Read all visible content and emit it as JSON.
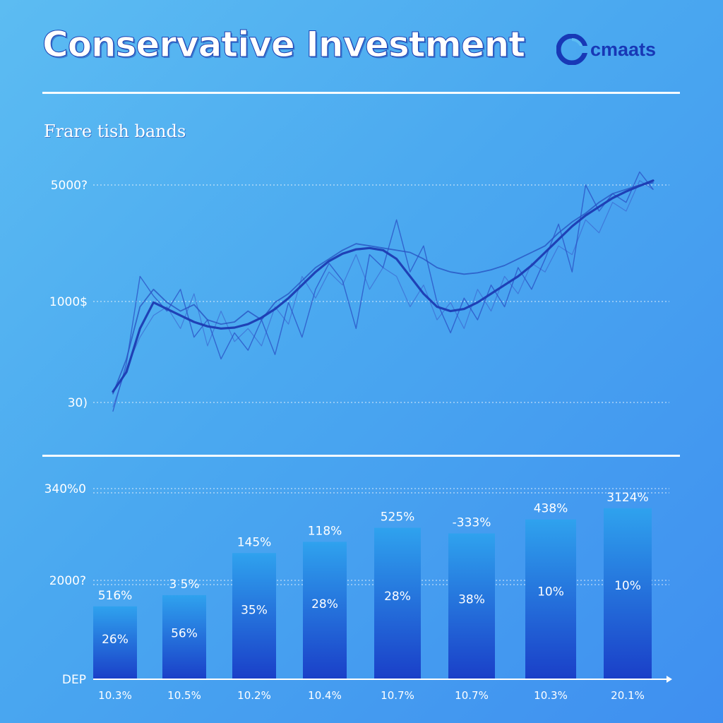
{
  "header": {
    "title": "Conservative Investment",
    "brand": "cmaats",
    "subtitle": "Frare tish bands"
  },
  "colors": {
    "background_start": "#5cbcf2",
    "background_end": "#3f8ff0",
    "line": "#1f3fb8",
    "bar_top": "#2fa2ee",
    "bar_bottom": "#1a3fc8",
    "text": "#ffffff"
  },
  "chart_data": [
    {
      "type": "line",
      "title": "",
      "y_ticks": [
        "5000?",
        "1000$",
        "30)"
      ],
      "x": [
        0,
        1,
        2,
        3,
        4,
        5,
        6,
        7,
        8,
        9,
        10,
        11,
        12,
        13,
        14,
        15,
        16,
        17,
        18,
        19,
        20,
        21,
        22,
        23,
        24,
        25,
        26,
        27,
        28,
        29,
        30,
        31,
        32,
        33,
        34,
        35,
        36,
        37,
        38,
        39,
        40
      ],
      "series": [
        {
          "values": [
            250,
            700,
            1700,
            2300,
            2150,
            2000,
            1850,
            1750,
            1700,
            1720,
            1800,
            1950,
            2150,
            2400,
            2700,
            3000,
            3250,
            3420,
            3520,
            3550,
            3500,
            3300,
            2900,
            2500,
            2200,
            2100,
            2150,
            2300,
            2500,
            2700,
            2900,
            3150,
            3450,
            3750,
            4050,
            4300,
            4500,
            4700,
            4850,
            4980,
            5100
          ],
          "style": "trend"
        },
        {
          "values": [
            -200,
            900,
            2900,
            2450,
            2100,
            2600,
            1500,
            1900,
            1000,
            1600,
            1200,
            1900,
            1100,
            2300,
            1500,
            2600,
            3200,
            2800,
            1700,
            3400,
            3100,
            4200,
            3000,
            3600,
            2300,
            1600,
            2400,
            1900,
            2700,
            2200,
            3100,
            2600,
            3300,
            4100,
            3000,
            5000,
            4400,
            4800,
            4600,
            5300,
            4900
          ],
          "style": "noisy-1"
        },
        {
          "values": [
            200,
            1000,
            2200,
            2600,
            2300,
            2100,
            2250,
            1900,
            1800,
            1850,
            2100,
            1900,
            2300,
            2500,
            2800,
            3100,
            3300,
            3500,
            3650,
            3600,
            3550,
            3500,
            3450,
            3300,
            3100,
            3000,
            2950,
            2980,
            3050,
            3150,
            3300,
            3450,
            3600,
            3900,
            4150,
            4350,
            4600,
            4800,
            4900,
            5000,
            5050
          ],
          "style": "noisy-2"
        },
        {
          "values": [
            -100,
            800,
            1500,
            2000,
            2200,
            1700,
            2500,
            1300,
            2100,
            1400,
            1700,
            1300,
            2200,
            1800,
            2900,
            2400,
            3000,
            2700,
            3400,
            2600,
            3100,
            2900,
            2200,
            2700,
            1900,
            2300,
            1700,
            2600,
            2100,
            2900,
            2500,
            3200,
            3000,
            3600,
            3400,
            4200,
            3900,
            4600,
            4400,
            5100,
            4900
          ],
          "style": "noisy-3"
        }
      ]
    },
    {
      "type": "bar",
      "title": "",
      "y_ticks": [
        "340%0",
        "2000?",
        "DEP"
      ],
      "categories": [
        "10.3%",
        "10.5%",
        "10.2%",
        "10.4%",
        "10.7%",
        "10.7%",
        "10.3%",
        "20.1%"
      ],
      "values": [
        1300,
        1500,
        2250,
        2450,
        2700,
        2600,
        2850,
        3050
      ],
      "ylim": [
        0,
        3400
      ],
      "top_labels": [
        "516%",
        "3 5%",
        "145%",
        "118%",
        "525%",
        "-333%",
        "438%",
        "3124%"
      ],
      "inner_labels": [
        "26%",
        "56%",
        "35%",
        "28%",
        "28%",
        "38%",
        "10%",
        "10%"
      ]
    }
  ]
}
